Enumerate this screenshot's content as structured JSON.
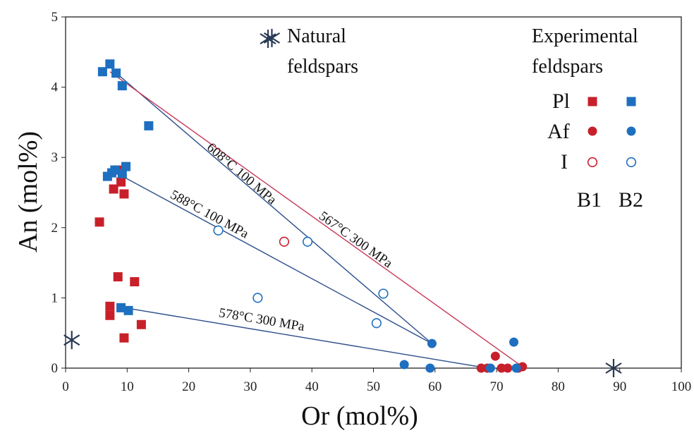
{
  "colors": {
    "b1": "#c8202a",
    "b2": "#1e6fbf",
    "line_blue": "#2c4f8c",
    "line_red": "#c83a5a",
    "natural": "#2a3a55"
  },
  "chart_data": {
    "type": "scatter",
    "xlabel": "Or (mol%)",
    "ylabel": "An (mol%)",
    "xlim": [
      0,
      100
    ],
    "ylim": [
      0,
      5
    ],
    "xticks": [
      "0",
      "10",
      "20",
      "30",
      "40",
      "50",
      "60",
      "70",
      "80",
      "90",
      "100"
    ],
    "yticks": [
      "0",
      "1",
      "2",
      "3",
      "4",
      "5"
    ],
    "legend": {
      "title_natural": [
        "Natural",
        "feldspars"
      ],
      "title_experimental": [
        "Experimental",
        "feldspars"
      ],
      "rows": [
        "Pl",
        "Af",
        "I"
      ],
      "columns": [
        "B1",
        "B2"
      ]
    },
    "series": [
      {
        "name": "Pl",
        "group": "B1",
        "marker": "square",
        "color": "#c8202a",
        "points": [
          [
            5.5,
            2.08
          ],
          [
            7.8,
            2.55
          ],
          [
            8.5,
            2.82
          ],
          [
            9,
            2.65
          ],
          [
            9.5,
            2.48
          ],
          [
            7.2,
            0.88
          ],
          [
            7.2,
            0.75
          ],
          [
            8.5,
            1.3
          ],
          [
            11.2,
            1.23
          ],
          [
            9.5,
            0.43
          ],
          [
            12.3,
            0.62
          ]
        ]
      },
      {
        "name": "Pl",
        "group": "B2",
        "marker": "square",
        "color": "#1e6fbf",
        "points": [
          [
            6,
            4.22
          ],
          [
            7.2,
            4.33
          ],
          [
            8.2,
            4.2
          ],
          [
            9.2,
            4.02
          ],
          [
            13.5,
            3.45
          ],
          [
            6.8,
            2.73
          ],
          [
            8,
            2.82
          ],
          [
            9.2,
            2.77
          ],
          [
            9.8,
            2.87
          ],
          [
            9,
            0.86
          ],
          [
            10.2,
            0.82
          ],
          [
            7.5,
            2.78
          ]
        ]
      },
      {
        "name": "Af",
        "group": "B1",
        "marker": "circle",
        "color": "#c8202a",
        "points": [
          [
            67.5,
            0
          ],
          [
            68.5,
            0
          ],
          [
            69.8,
            0.17
          ],
          [
            70.8,
            0
          ],
          [
            71.8,
            0
          ],
          [
            73.5,
            0
          ],
          [
            74.2,
            0.02
          ]
        ]
      },
      {
        "name": "Af",
        "group": "B2",
        "marker": "circle",
        "color": "#1e6fbf",
        "points": [
          [
            59.5,
            0.35
          ],
          [
            55,
            0.05
          ],
          [
            59.2,
            0
          ],
          [
            69,
            0
          ],
          [
            72.8,
            0.37
          ],
          [
            73.2,
            0
          ]
        ]
      },
      {
        "name": "I",
        "group": "B1",
        "marker": "open-circle",
        "color": "#c8202a",
        "points": [
          [
            35.5,
            1.8
          ]
        ]
      },
      {
        "name": "I",
        "group": "B2",
        "marker": "open-circle",
        "color": "#1e6fbf",
        "points": [
          [
            24.8,
            1.96
          ],
          [
            31.2,
            1.0
          ],
          [
            39.3,
            1.8
          ],
          [
            50.5,
            0.64
          ],
          [
            51.6,
            1.06
          ]
        ]
      }
    ],
    "natural_points": [
      [
        1,
        0.4
      ],
      [
        33.5,
        4.7
      ],
      [
        89,
        0
      ]
    ],
    "tie_lines": [
      {
        "label": "608°C 100 MPa",
        "color": "#2c4f8c",
        "from": [
          8.5,
          4.18
        ],
        "to": [
          59.5,
          0.35
        ]
      },
      {
        "label": "588°C 100 MPa",
        "color": "#2c4f8c",
        "from": [
          8.2,
          2.78
        ],
        "to": [
          59.5,
          0.35
        ]
      },
      {
        "label": "578°C 300 MPa",
        "color": "#2c4f8c",
        "from": [
          9.5,
          0.86
        ],
        "to": [
          68.5,
          0
        ]
      },
      {
        "label": "567°C 300 MPa",
        "color": "#c83a5a",
        "from": [
          7.2,
          4.22
        ],
        "to": [
          74.2,
          0.02
        ]
      }
    ]
  }
}
